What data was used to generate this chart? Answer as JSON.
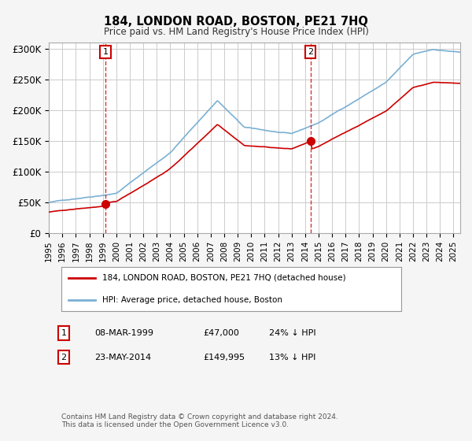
{
  "title": "184, LONDON ROAD, BOSTON, PE21 7HQ",
  "subtitle": "Price paid vs. HM Land Registry's House Price Index (HPI)",
  "legend_line1": "184, LONDON ROAD, BOSTON, PE21 7HQ (detached house)",
  "legend_line2": "HPI: Average price, detached house, Boston",
  "footnote": "Contains HM Land Registry data © Crown copyright and database right 2024.\nThis data is licensed under the Open Government Licence v3.0.",
  "table_rows": [
    [
      "1",
      "08-MAR-1999",
      "£47,000",
      "24% ↓ HPI"
    ],
    [
      "2",
      "23-MAY-2014",
      "£149,995",
      "13% ↓ HPI"
    ]
  ],
  "purchase1_date_x": 1999.19,
  "purchase1_price": 47000,
  "purchase2_date_x": 2014.39,
  "purchase2_price": 149995,
  "vline1_x": 1999.19,
  "vline2_x": 2014.39,
  "red_color": "#cc0000",
  "blue_color": "#6699cc",
  "hpi_color": "#7ab0d4",
  "ylabel_ticks": [
    "£0",
    "£50K",
    "£100K",
    "£150K",
    "£200K",
    "£250K",
    "£300K"
  ],
  "ytick_values": [
    0,
    50000,
    100000,
    150000,
    200000,
    250000,
    300000
  ],
  "ylim": [
    0,
    310000
  ],
  "xlim_start": 1995.0,
  "xlim_end": 2025.5,
  "bg_color": "#f5f5f5",
  "plot_bg": "#ffffff",
  "grid_color": "#cccccc"
}
